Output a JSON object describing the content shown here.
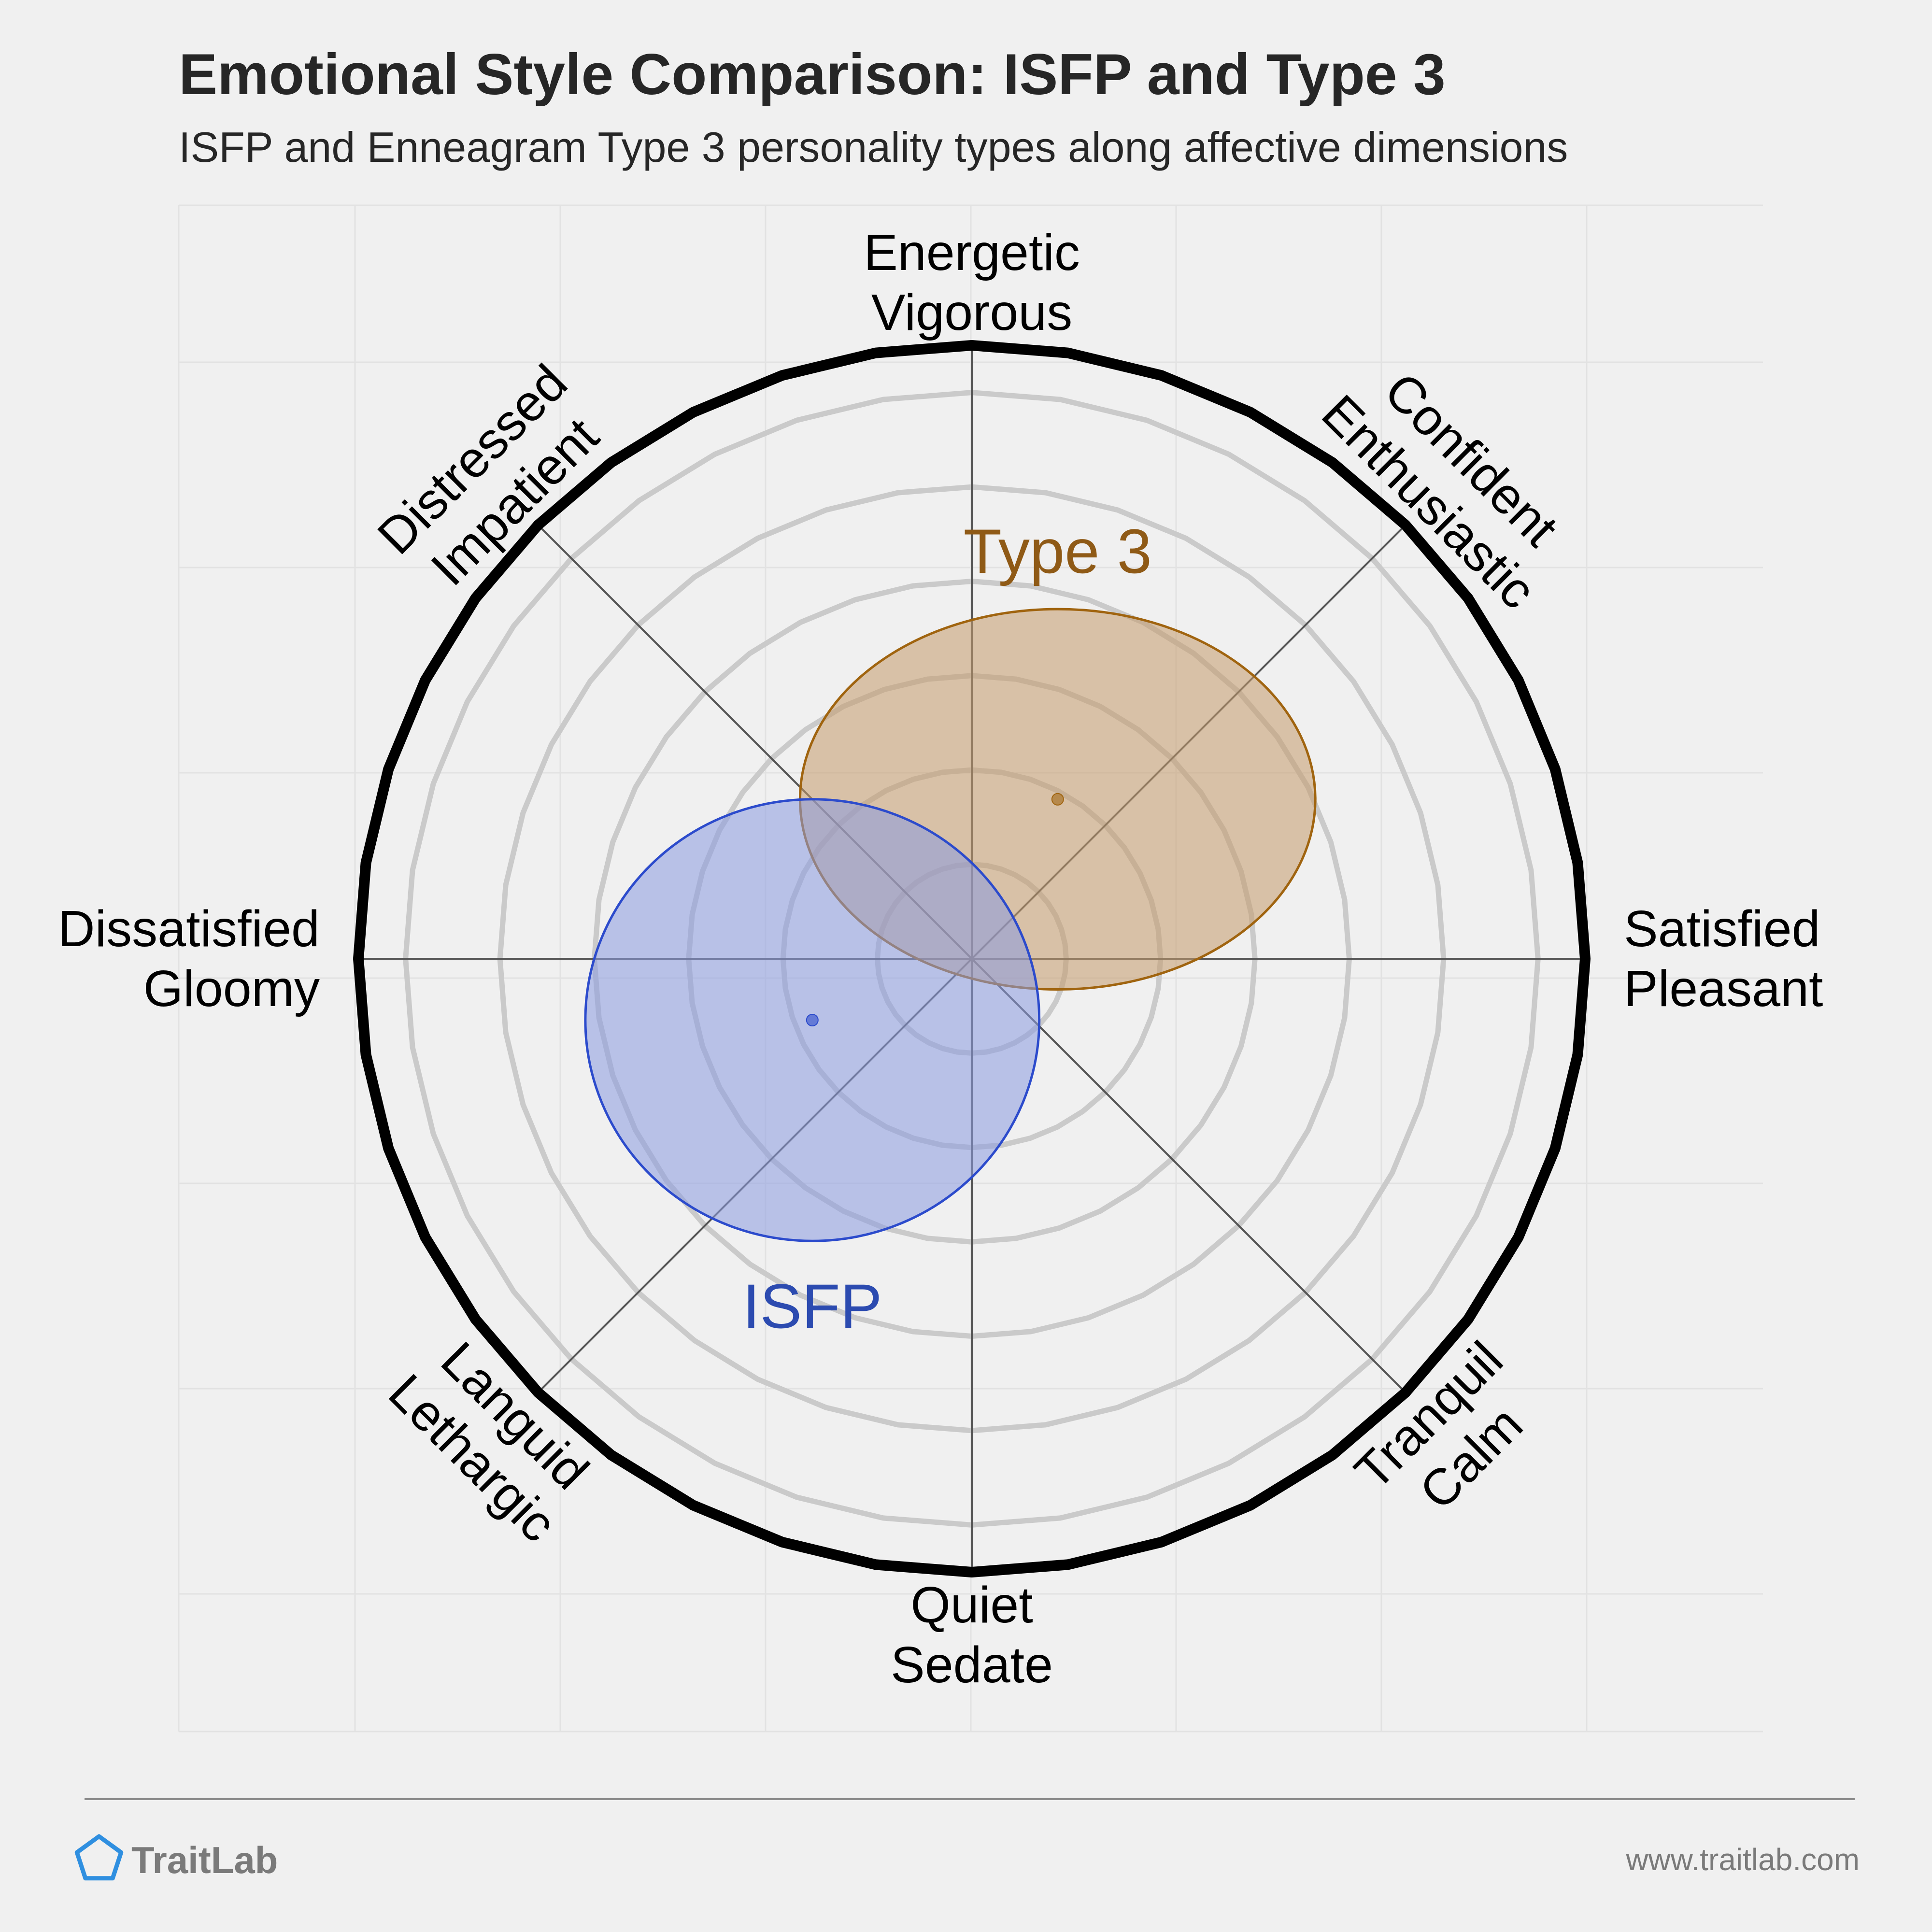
{
  "title": "Emotional Style Comparison: ISFP and Type 3",
  "subtitle": "ISFP and Enneagram Type 3 personality types along affective dimensions",
  "footer": {
    "brand": "TraitLab",
    "url": "www.traitlab.com",
    "accent": "#2f8fe0",
    "text_color": "#7a7a7a"
  },
  "chart_data": {
    "type": "scatter",
    "chart_kind": "circumplex",
    "grid": true,
    "ring_count": 6,
    "axes": [
      {
        "id": "energetic",
        "angle_deg": 90,
        "lines": [
          "Energetic",
          "Vigorous"
        ]
      },
      {
        "id": "confident",
        "angle_deg": 45,
        "lines": [
          "Confident",
          "Enthusiastic"
        ]
      },
      {
        "id": "satisfied",
        "angle_deg": 0,
        "lines": [
          "Satisfied",
          "Pleasant"
        ]
      },
      {
        "id": "tranquil",
        "angle_deg": -45,
        "lines": [
          "Tranquil",
          "Calm"
        ]
      },
      {
        "id": "quiet",
        "angle_deg": -90,
        "lines": [
          "Quiet",
          "Sedate"
        ]
      },
      {
        "id": "languid",
        "angle_deg": -135,
        "lines": [
          "Languid",
          "Lethargic"
        ]
      },
      {
        "id": "dissatisfied",
        "angle_deg": 180,
        "lines": [
          "Dissatisfied",
          "Gloomy"
        ]
      },
      {
        "id": "distressed",
        "angle_deg": 135,
        "lines": [
          "Distressed",
          "Impatient"
        ]
      }
    ],
    "xlim": [
      -1,
      1
    ],
    "ylim": [
      -1,
      1
    ],
    "series": [
      {
        "name": "Type 3",
        "x": 0.14,
        "y": 0.26,
        "rx": 0.42,
        "ry": 0.31,
        "fill": "#c49a6c",
        "stroke": "#a0640f",
        "label_color": "#8f5a16"
      },
      {
        "name": "ISFP",
        "x": -0.26,
        "y": -0.1,
        "rx": 0.37,
        "ry": 0.36,
        "fill": "#8b9be0",
        "stroke": "#2c4bcc",
        "label_color": "#2c4bb0"
      }
    ]
  }
}
